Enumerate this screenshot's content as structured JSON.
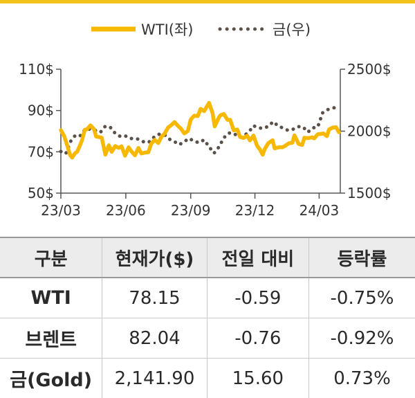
{
  "chart_data": {
    "type": "line",
    "legend": {
      "position": "top-center"
    },
    "series": [
      {
        "name": "WTI(좌)",
        "axis": "left",
        "color": "#f6b800",
        "style": "solid",
        "points": [
          [
            "2023-03-01",
            80.5
          ],
          [
            "2023-03-06",
            77.4
          ],
          [
            "2023-03-10",
            73.1
          ],
          [
            "2023-03-14",
            68.5
          ],
          [
            "2023-03-17",
            67.2
          ],
          [
            "2023-03-21",
            69.3
          ],
          [
            "2023-03-24",
            70.0
          ],
          [
            "2023-03-28",
            73.0
          ],
          [
            "2023-03-31",
            75.7
          ],
          [
            "2023-04-04",
            80.7
          ],
          [
            "2023-04-07",
            80.9
          ],
          [
            "2023-04-12",
            82.8
          ],
          [
            "2023-04-17",
            81.0
          ],
          [
            "2023-04-20",
            77.4
          ],
          [
            "2023-04-25",
            77.1
          ],
          [
            "2023-04-28",
            76.8
          ],
          [
            "2023-05-03",
            68.6
          ],
          [
            "2023-05-08",
            73.2
          ],
          [
            "2023-05-12",
            70.0
          ],
          [
            "2023-05-17",
            72.8
          ],
          [
            "2023-05-22",
            71.9
          ],
          [
            "2023-05-26",
            72.7
          ],
          [
            "2023-05-31",
            68.1
          ],
          [
            "2023-06-05",
            72.2
          ],
          [
            "2023-06-09",
            70.2
          ],
          [
            "2023-06-14",
            68.3
          ],
          [
            "2023-06-19",
            71.9
          ],
          [
            "2023-06-23",
            69.2
          ],
          [
            "2023-06-28",
            69.6
          ],
          [
            "2023-07-03",
            69.8
          ],
          [
            "2023-07-07",
            73.9
          ],
          [
            "2023-07-12",
            75.8
          ],
          [
            "2023-07-17",
            74.2
          ],
          [
            "2023-07-21",
            77.1
          ],
          [
            "2023-07-26",
            78.8
          ],
          [
            "2023-07-31",
            81.8
          ],
          [
            "2023-08-04",
            82.8
          ],
          [
            "2023-08-09",
            84.4
          ],
          [
            "2023-08-14",
            82.5
          ],
          [
            "2023-08-18",
            81.3
          ],
          [
            "2023-08-23",
            78.9
          ],
          [
            "2023-08-28",
            80.1
          ],
          [
            "2023-09-01",
            85.6
          ],
          [
            "2023-09-06",
            87.5
          ],
          [
            "2023-09-11",
            87.3
          ],
          [
            "2023-09-15",
            90.8
          ],
          [
            "2023-09-20",
            89.7
          ],
          [
            "2023-09-27",
            93.7
          ],
          [
            "2023-10-02",
            88.8
          ],
          [
            "2023-10-05",
            82.3
          ],
          [
            "2023-10-10",
            86.0
          ],
          [
            "2023-10-13",
            87.7
          ],
          [
            "2023-10-18",
            88.3
          ],
          [
            "2023-10-23",
            85.5
          ],
          [
            "2023-10-27",
            85.5
          ],
          [
            "2023-11-01",
            80.4
          ],
          [
            "2023-11-06",
            80.8
          ],
          [
            "2023-11-10",
            77.2
          ],
          [
            "2023-11-15",
            76.7
          ],
          [
            "2023-11-20",
            77.8
          ],
          [
            "2023-11-24",
            75.5
          ],
          [
            "2023-11-29",
            77.9
          ],
          [
            "2023-12-04",
            73.0
          ],
          [
            "2023-12-08",
            71.2
          ],
          [
            "2023-12-12",
            68.6
          ],
          [
            "2023-12-15",
            71.4
          ],
          [
            "2023-12-20",
            74.2
          ],
          [
            "2023-12-26",
            75.6
          ],
          [
            "2023-12-29",
            71.7
          ],
          [
            "2024-01-04",
            72.2
          ],
          [
            "2024-01-09",
            72.2
          ],
          [
            "2024-01-12",
            72.7
          ],
          [
            "2024-01-18",
            74.1
          ],
          [
            "2024-01-23",
            74.4
          ],
          [
            "2024-01-26",
            78.0
          ],
          [
            "2024-02-01",
            73.8
          ],
          [
            "2024-02-06",
            73.3
          ],
          [
            "2024-02-09",
            76.8
          ],
          [
            "2024-02-14",
            76.6
          ],
          [
            "2024-02-20",
            77.0
          ],
          [
            "2024-02-23",
            76.5
          ],
          [
            "2024-02-28",
            78.5
          ],
          [
            "2024-03-04",
            78.7
          ],
          [
            "2024-03-07",
            78.9
          ],
          [
            "2024-03-12",
            77.6
          ],
          [
            "2024-03-15",
            80.8
          ],
          [
            "2024-03-20",
            81.7
          ],
          [
            "2024-03-25",
            81.9
          ],
          [
            "2024-03-29",
            79.5
          ]
        ]
      },
      {
        "name": "금(우)",
        "axis": "right",
        "color": "#5b5148",
        "style": "dotted",
        "points": [
          [
            "2023-03-01",
            1836
          ],
          [
            "2023-03-08",
            1818
          ],
          [
            "2023-03-15",
            1919
          ],
          [
            "2023-03-22",
            1970
          ],
          [
            "2023-03-29",
            1964
          ],
          [
            "2023-04-05",
            2020
          ],
          [
            "2023-04-12",
            2015
          ],
          [
            "2023-04-19",
            2005
          ],
          [
            "2023-04-26",
            1990
          ],
          [
            "2023-05-03",
            2040
          ],
          [
            "2023-05-10",
            2032
          ],
          [
            "2023-05-17",
            1982
          ],
          [
            "2023-05-24",
            1958
          ],
          [
            "2023-05-31",
            1963
          ],
          [
            "2023-06-07",
            1940
          ],
          [
            "2023-06-14",
            1942
          ],
          [
            "2023-06-21",
            1932
          ],
          [
            "2023-06-28",
            1908
          ],
          [
            "2023-07-05",
            1915
          ],
          [
            "2023-07-12",
            1958
          ],
          [
            "2023-07-19",
            1977
          ],
          [
            "2023-07-26",
            1971
          ],
          [
            "2023-08-02",
            1935
          ],
          [
            "2023-08-09",
            1915
          ],
          [
            "2023-08-16",
            1891
          ],
          [
            "2023-08-23",
            1917
          ],
          [
            "2023-08-30",
            1942
          ],
          [
            "2023-09-06",
            1917
          ],
          [
            "2023-09-13",
            1908
          ],
          [
            "2023-09-20",
            1930
          ],
          [
            "2023-09-27",
            1875
          ],
          [
            "2023-10-04",
            1822
          ],
          [
            "2023-10-11",
            1872
          ],
          [
            "2023-10-18",
            1947
          ],
          [
            "2023-10-25",
            1985
          ],
          [
            "2023-11-01",
            1983
          ],
          [
            "2023-11-08",
            1950
          ],
          [
            "2023-11-15",
            1962
          ],
          [
            "2023-11-22",
            1990
          ],
          [
            "2023-11-29",
            2044
          ],
          [
            "2023-12-06",
            2026
          ],
          [
            "2023-12-13",
            2023
          ],
          [
            "2023-12-20",
            2039
          ],
          [
            "2023-12-27",
            2077
          ],
          [
            "2024-01-03",
            2041
          ],
          [
            "2024-01-10",
            2025
          ],
          [
            "2024-01-17",
            2006
          ],
          [
            "2024-01-24",
            2015
          ],
          [
            "2024-01-31",
            2037
          ],
          [
            "2024-02-07",
            2035
          ],
          [
            "2024-02-14",
            1992
          ],
          [
            "2024-02-21",
            2026
          ],
          [
            "2024-02-28",
            2034
          ],
          [
            "2024-03-06",
            2148
          ],
          [
            "2024-03-13",
            2174
          ],
          [
            "2024-03-20",
            2186
          ],
          [
            "2024-03-27",
            2195
          ]
        ]
      }
    ],
    "x_axis": {
      "range": [
        "2023-03-01",
        "2024-03-31"
      ],
      "ticks": [
        [
          "2023-03-01",
          "23/03"
        ],
        [
          "2023-06-01",
          "23/06"
        ],
        [
          "2023-09-01",
          "23/09"
        ],
        [
          "2023-12-01",
          "23/12"
        ],
        [
          "2024-03-01",
          "24/03"
        ]
      ]
    },
    "y_left": {
      "min": 50,
      "max": 110,
      "ticks": [
        110,
        90,
        70,
        50
      ],
      "tick_labels": [
        "110$",
        "90$",
        "70$",
        "50$"
      ]
    },
    "y_right": {
      "min": 1500,
      "max": 2500,
      "ticks": [
        2500,
        2000,
        1500
      ],
      "tick_labels": [
        "2500$",
        "2000$",
        "1500$"
      ]
    },
    "grid": false
  },
  "table": {
    "headers": [
      "구분",
      "현재가($)",
      "전일 대비",
      "등락률"
    ],
    "rows": [
      [
        "WTI",
        "78.15",
        "-0.59",
        "-0.75%"
      ],
      [
        "브렌트",
        "82.04",
        "-0.76",
        "-0.92%"
      ],
      [
        "금(Gold)",
        "2,141.90",
        "15.60",
        "0.73%"
      ]
    ]
  }
}
